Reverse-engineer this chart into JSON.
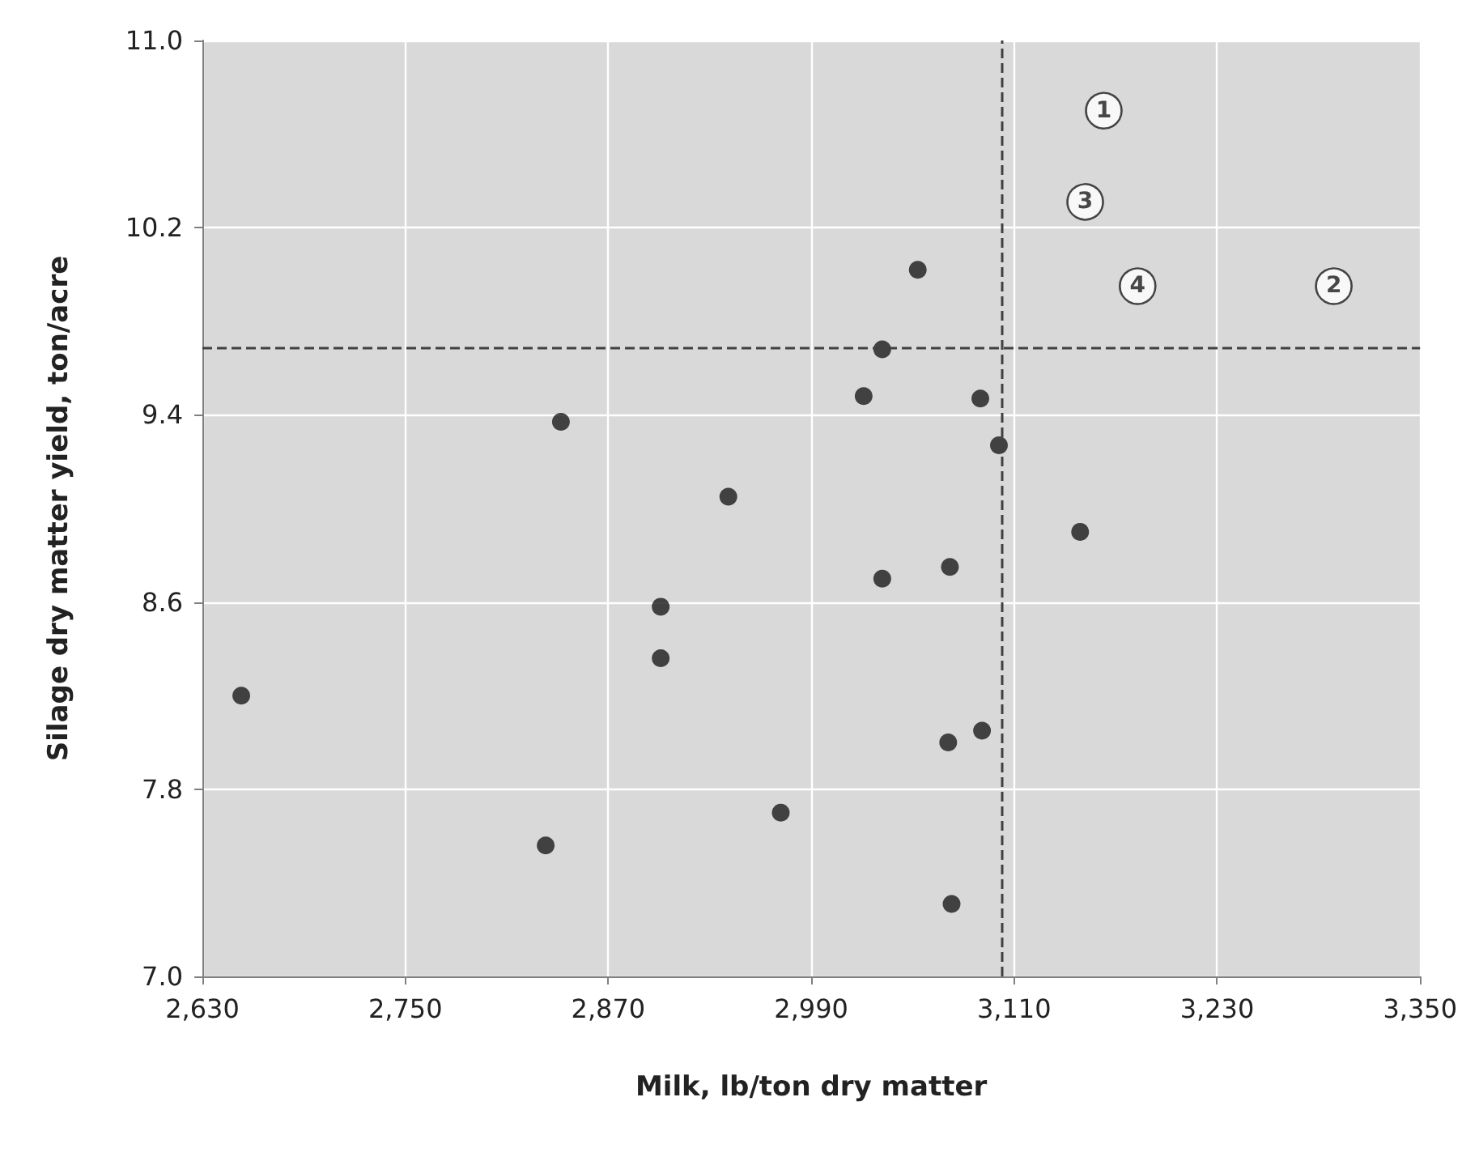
{
  "chart_data": {
    "type": "scatter",
    "xlabel": "Milk, lb/ton dry matter",
    "ylabel": "Silage dry matter yield, ton/acre",
    "xlim": [
      2630,
      3350
    ],
    "xticks": [
      {
        "value": 2630,
        "label": "2,630"
      },
      {
        "value": 2750,
        "label": "2,750"
      },
      {
        "value": 2870,
        "label": "2,870"
      },
      {
        "value": 2990,
        "label": "2,990"
      },
      {
        "value": 3110,
        "label": "3,110"
      },
      {
        "value": 3230,
        "label": "3,230"
      },
      {
        "value": 3350,
        "label": "3,350"
      }
    ],
    "ylim": [
      7.0,
      11.0
    ],
    "yticks": [
      {
        "value": 7.0,
        "label": "7.0"
      },
      {
        "value": 7.8,
        "label": "7.8"
      },
      {
        "value": 8.6,
        "label": "8.6"
      },
      {
        "value": 9.4,
        "label": "9.4"
      },
      {
        "value": 10.2,
        "label": "10.2"
      },
      {
        "value": 11.0,
        "label": "11.0"
      }
    ],
    "grid": true,
    "marker": "circle",
    "series": [
      {
        "color": "#1a1a1a",
        "x": [
          2653,
          2833,
          2842,
          2901,
          2901,
          2941,
          2972,
          3021,
          3032,
          3032,
          3053,
          3072,
          3071,
          3073,
          3090,
          3091,
          3101,
          3149
        ],
        "values": [
          8.2,
          7.56,
          9.37,
          8.58,
          8.36,
          9.05,
          7.7,
          9.48,
          9.68,
          8.7,
          10.02,
          8.75,
          8.0,
          7.31,
          9.47,
          8.05,
          9.27,
          8.9
        ]
      },
      {
        "name": "1",
        "color": "#ffffff",
        "x": [
          3163
        ],
        "values": [
          10.7
        ]
      },
      {
        "name": "3",
        "color": "#ffffff",
        "x": [
          3152
        ],
        "values": [
          10.31
        ]
      },
      {
        "name": "4",
        "color": "#ffffff",
        "x": [
          3183
        ],
        "values": [
          9.95
        ]
      },
      {
        "name": "2",
        "color": "#ffffff",
        "x": [
          3299
        ],
        "values": [
          9.95
        ]
      }
    ],
    "ref_lines": [
      {
        "axis": "x",
        "value": 3103,
        "color": "#404040",
        "line_style": "dashed"
      },
      {
        "axis": "y",
        "value": 9.69,
        "color": "#404040",
        "line_style": "dashed"
      }
    ]
  }
}
